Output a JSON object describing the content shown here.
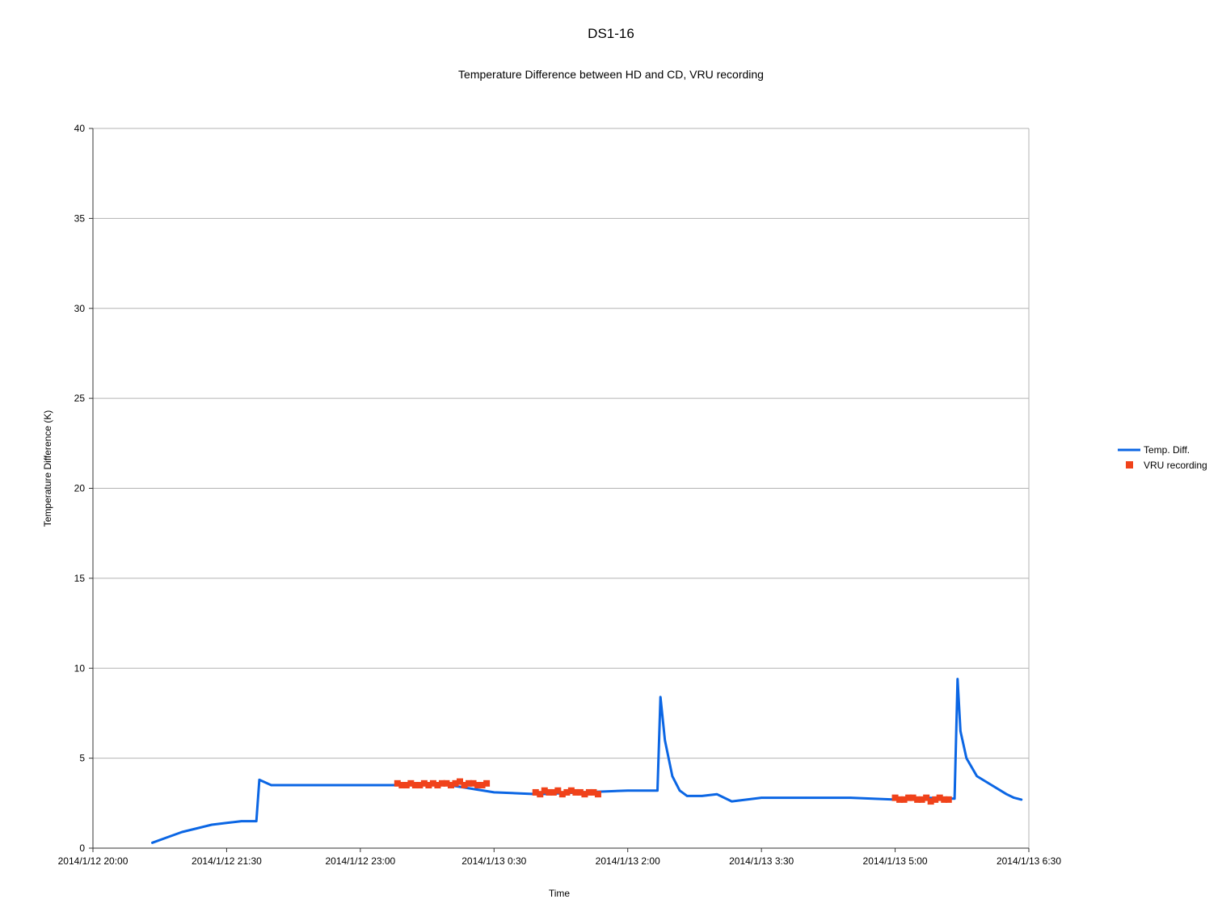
{
  "title": "DS1-16",
  "subtitle": "Temperature Difference between HD and CD, VRU recording",
  "colors": {
    "series": "#0b66e4",
    "markers": "#f0421a",
    "grid": "#b3b3b3",
    "axis": "#333333"
  },
  "chart_data": {
    "type": "line",
    "title": "DS1-16",
    "subtitle": "Temperature Difference between HD and CD, VRU recording",
    "xlabel": "Time",
    "ylabel": "Temperature Difference (K)",
    "xlim": [
      "2014/1/12 20:00",
      "2014/1/13 6:30"
    ],
    "ylim": [
      0,
      40
    ],
    "x_ticks": [
      "2014/1/12 20:00",
      "2014/1/12 21:30",
      "2014/1/12 23:00",
      "2014/1/13 0:30",
      "2014/1/13 2:00",
      "2014/1/13 3:30",
      "2014/1/13 5:00",
      "2014/1/13 6:30"
    ],
    "y_ticks": [
      0,
      5,
      10,
      15,
      20,
      25,
      30,
      35,
      40
    ],
    "grid": true,
    "legend_position": "right",
    "series": [
      {
        "name": "Temp. Diff.",
        "style": "line",
        "color": "#0b66e4",
        "x": [
          "2014/1/12 20:40",
          "2014/1/12 20:50",
          "2014/1/12 21:00",
          "2014/1/12 21:10",
          "2014/1/12 21:20",
          "2014/1/12 21:30",
          "2014/1/12 21:40",
          "2014/1/12 21:50",
          "2014/1/12 21:52",
          "2014/1/12 22:00",
          "2014/1/12 22:30",
          "2014/1/12 23:00",
          "2014/1/12 23:30",
          "2014/1/13 0:00",
          "2014/1/13 0:30",
          "2014/1/13 1:00",
          "2014/1/13 1:30",
          "2014/1/13 2:00",
          "2014/1/13 2:20",
          "2014/1/13 2:22",
          "2014/1/13 2:25",
          "2014/1/13 2:30",
          "2014/1/13 2:35",
          "2014/1/13 2:40",
          "2014/1/13 2:50",
          "2014/1/13 3:00",
          "2014/1/13 3:10",
          "2014/1/13 3:20",
          "2014/1/13 3:30",
          "2014/1/13 4:00",
          "2014/1/13 4:30",
          "2014/1/13 5:00",
          "2014/1/13 5:20",
          "2014/1/13 5:40",
          "2014/1/13 5:42",
          "2014/1/13 5:44",
          "2014/1/13 5:48",
          "2014/1/13 5:55",
          "2014/1/13 6:05",
          "2014/1/13 6:15",
          "2014/1/13 6:20",
          "2014/1/13 6:25"
        ],
        "values": [
          0.3,
          0.6,
          0.9,
          1.1,
          1.3,
          1.4,
          1.5,
          1.5,
          3.8,
          3.5,
          3.5,
          3.5,
          3.5,
          3.5,
          3.1,
          3.0,
          3.1,
          3.2,
          3.2,
          8.4,
          6.0,
          4.0,
          3.2,
          2.9,
          2.9,
          3.0,
          2.6,
          2.7,
          2.8,
          2.8,
          2.8,
          2.7,
          2.8,
          2.75,
          9.4,
          6.5,
          5.0,
          4.0,
          3.5,
          3.0,
          2.8,
          2.7
        ]
      },
      {
        "name": "VRU recording",
        "style": "markers",
        "color": "#f0421a",
        "x": [
          "2014/1/12 23:25",
          "2014/1/12 23:28",
          "2014/1/12 23:31",
          "2014/1/12 23:34",
          "2014/1/12 23:37",
          "2014/1/12 23:40",
          "2014/1/12 23:43",
          "2014/1/12 23:46",
          "2014/1/12 23:49",
          "2014/1/12 23:52",
          "2014/1/12 23:55",
          "2014/1/12 23:58",
          "2014/1/13 0:01",
          "2014/1/13 0:04",
          "2014/1/13 0:07",
          "2014/1/13 0:10",
          "2014/1/13 0:13",
          "2014/1/13 0:16",
          "2014/1/13 0:19",
          "2014/1/13 0:22",
          "2014/1/13 0:25",
          "2014/1/13 0:58",
          "2014/1/13 1:01",
          "2014/1/13 1:04",
          "2014/1/13 1:07",
          "2014/1/13 1:10",
          "2014/1/13 1:13",
          "2014/1/13 1:16",
          "2014/1/13 1:19",
          "2014/1/13 1:22",
          "2014/1/13 1:25",
          "2014/1/13 1:28",
          "2014/1/13 1:31",
          "2014/1/13 1:34",
          "2014/1/13 1:37",
          "2014/1/13 1:40",
          "2014/1/13 5:00",
          "2014/1/13 5:03",
          "2014/1/13 5:06",
          "2014/1/13 5:09",
          "2014/1/13 5:12",
          "2014/1/13 5:15",
          "2014/1/13 5:18",
          "2014/1/13 5:21",
          "2014/1/13 5:24",
          "2014/1/13 5:27",
          "2014/1/13 5:30",
          "2014/1/13 5:33",
          "2014/1/13 5:36"
        ],
        "values": [
          3.6,
          3.5,
          3.5,
          3.6,
          3.5,
          3.5,
          3.6,
          3.5,
          3.6,
          3.5,
          3.6,
          3.6,
          3.5,
          3.6,
          3.7,
          3.5,
          3.6,
          3.6,
          3.5,
          3.5,
          3.6,
          3.1,
          3.0,
          3.2,
          3.1,
          3.1,
          3.2,
          3.0,
          3.1,
          3.2,
          3.1,
          3.1,
          3.0,
          3.1,
          3.1,
          3.0,
          2.8,
          2.7,
          2.7,
          2.8,
          2.8,
          2.7,
          2.7,
          2.8,
          2.6,
          2.7,
          2.8,
          2.7,
          2.7
        ]
      }
    ]
  }
}
